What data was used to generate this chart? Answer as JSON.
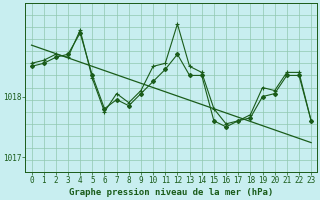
{
  "title": "Graphe pression niveau de la mer (hPa)",
  "bg_color": "#c8eef0",
  "line_color": "#1a5c1a",
  "grid_color": "#90c8b0",
  "x": [
    0,
    1,
    2,
    3,
    4,
    5,
    6,
    7,
    8,
    9,
    10,
    11,
    12,
    13,
    14,
    15,
    16,
    17,
    18,
    19,
    20,
    21,
    22,
    23
  ],
  "y_main": [
    1018.5,
    1018.55,
    1018.65,
    1018.7,
    1019.05,
    1018.35,
    1017.8,
    1017.95,
    1017.85,
    1018.05,
    1018.25,
    1018.45,
    1018.7,
    1018.35,
    1018.35,
    1017.6,
    1017.5,
    1017.6,
    1017.65,
    1018.0,
    1018.05,
    1018.35,
    1018.35,
    1017.6
  ],
  "y_line2": [
    1018.55,
    1018.6,
    1018.7,
    1018.65,
    1019.1,
    1018.3,
    1017.75,
    1018.05,
    1017.9,
    1018.1,
    1018.5,
    1018.55,
    1019.2,
    1018.5,
    1018.4,
    1017.8,
    1017.55,
    1017.6,
    1017.7,
    1018.15,
    1018.1,
    1018.4,
    1018.4,
    1017.6
  ],
  "y_trend": [
    1018.85,
    1018.78,
    1018.71,
    1018.64,
    1018.57,
    1018.5,
    1018.43,
    1018.36,
    1018.29,
    1018.22,
    1018.15,
    1018.08,
    1018.01,
    1017.94,
    1017.87,
    1017.8,
    1017.73,
    1017.66,
    1017.59,
    1017.52,
    1017.45,
    1017.38,
    1017.31,
    1017.24
  ],
  "ylim": [
    1016.75,
    1019.55
  ],
  "yticks": [
    1017.0,
    1018.0
  ],
  "xlim": [
    -0.5,
    23.5
  ],
  "xticks": [
    0,
    1,
    2,
    3,
    4,
    5,
    6,
    7,
    8,
    9,
    10,
    11,
    12,
    13,
    14,
    15,
    16,
    17,
    18,
    19,
    20,
    21,
    22,
    23
  ],
  "tick_fontsize": 5.5,
  "title_fontsize": 6.5,
  "figsize": [
    3.2,
    2.0
  ],
  "dpi": 100
}
